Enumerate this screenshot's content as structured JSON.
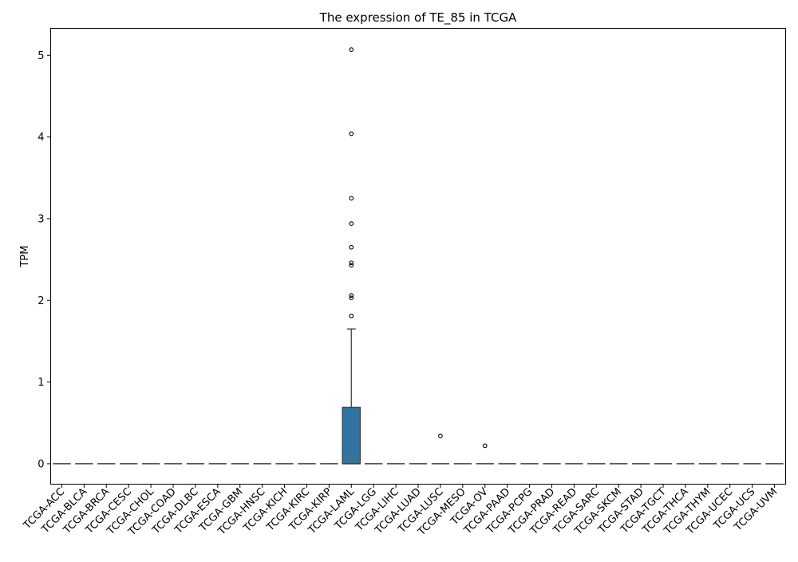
{
  "chart_data": {
    "type": "box",
    "title": "The expression of TE_85 in TCGA",
    "xlabel": "",
    "ylabel": "TPM",
    "ylim": [
      -0.25,
      5.33
    ],
    "yticks": [
      0,
      1,
      2,
      3,
      4,
      5
    ],
    "grid": false,
    "legend": "none",
    "box_color": "#3274a1",
    "categories": [
      "TCGA-ACC",
      "TCGA-BLCA",
      "TCGA-BRCA",
      "TCGA-CESC",
      "TCGA-CHOL",
      "TCGA-COAD",
      "TCGA-DLBC",
      "TCGA-ESCA",
      "TCGA-GBM",
      "TCGA-HNSC",
      "TCGA-KICH",
      "TCGA-KIRC",
      "TCGA-KIRP",
      "TCGA-LAML",
      "TCGA-LGG",
      "TCGA-LIHC",
      "TCGA-LUAD",
      "TCGA-LUSC",
      "TCGA-MESO",
      "TCGA-OV",
      "TCGA-PAAD",
      "TCGA-PCPG",
      "TCGA-PRAD",
      "TCGA-READ",
      "TCGA-SARC",
      "TCGA-SKCM",
      "TCGA-STAD",
      "TCGA-TGCT",
      "TCGA-THCA",
      "TCGA-THYM",
      "TCGA-UCEC",
      "TCGA-UCS",
      "TCGA-UVM"
    ],
    "boxes": [
      {
        "q1": 0,
        "median": 0,
        "q3": 0,
        "whisker_low": 0,
        "whisker_high": 0,
        "outliers": []
      },
      {
        "q1": 0,
        "median": 0,
        "q3": 0,
        "whisker_low": 0,
        "whisker_high": 0,
        "outliers": []
      },
      {
        "q1": 0,
        "median": 0,
        "q3": 0,
        "whisker_low": 0,
        "whisker_high": 0,
        "outliers": []
      },
      {
        "q1": 0,
        "median": 0,
        "q3": 0,
        "whisker_low": 0,
        "whisker_high": 0,
        "outliers": []
      },
      {
        "q1": 0,
        "median": 0,
        "q3": 0,
        "whisker_low": 0,
        "whisker_high": 0,
        "outliers": []
      },
      {
        "q1": 0,
        "median": 0,
        "q3": 0,
        "whisker_low": 0,
        "whisker_high": 0,
        "outliers": []
      },
      {
        "q1": 0,
        "median": 0,
        "q3": 0,
        "whisker_low": 0,
        "whisker_high": 0,
        "outliers": []
      },
      {
        "q1": 0,
        "median": 0,
        "q3": 0,
        "whisker_low": 0,
        "whisker_high": 0,
        "outliers": []
      },
      {
        "q1": 0,
        "median": 0,
        "q3": 0,
        "whisker_low": 0,
        "whisker_high": 0,
        "outliers": []
      },
      {
        "q1": 0,
        "median": 0,
        "q3": 0,
        "whisker_low": 0,
        "whisker_high": 0,
        "outliers": []
      },
      {
        "q1": 0,
        "median": 0,
        "q3": 0,
        "whisker_low": 0,
        "whisker_high": 0,
        "outliers": []
      },
      {
        "q1": 0,
        "median": 0,
        "q3": 0,
        "whisker_low": 0,
        "whisker_high": 0,
        "outliers": []
      },
      {
        "q1": 0,
        "median": 0,
        "q3": 0,
        "whisker_low": 0,
        "whisker_high": 0,
        "outliers": []
      },
      {
        "q1": 0,
        "median": 0,
        "q3": 0.69,
        "whisker_low": 0,
        "whisker_high": 1.65,
        "outliers": [
          5.07,
          4.04,
          3.25,
          2.94,
          2.65,
          2.46,
          2.43,
          2.06,
          2.03,
          1.81
        ]
      },
      {
        "q1": 0,
        "median": 0,
        "q3": 0,
        "whisker_low": 0,
        "whisker_high": 0,
        "outliers": []
      },
      {
        "q1": 0,
        "median": 0,
        "q3": 0,
        "whisker_low": 0,
        "whisker_high": 0,
        "outliers": []
      },
      {
        "q1": 0,
        "median": 0,
        "q3": 0,
        "whisker_low": 0,
        "whisker_high": 0,
        "outliers": []
      },
      {
        "q1": 0,
        "median": 0,
        "q3": 0,
        "whisker_low": 0,
        "whisker_high": 0,
        "outliers": [
          0.34
        ]
      },
      {
        "q1": 0,
        "median": 0,
        "q3": 0,
        "whisker_low": 0,
        "whisker_high": 0,
        "outliers": []
      },
      {
        "q1": 0,
        "median": 0,
        "q3": 0,
        "whisker_low": 0,
        "whisker_high": 0,
        "outliers": [
          0.22
        ]
      },
      {
        "q1": 0,
        "median": 0,
        "q3": 0,
        "whisker_low": 0,
        "whisker_high": 0,
        "outliers": []
      },
      {
        "q1": 0,
        "median": 0,
        "q3": 0,
        "whisker_low": 0,
        "whisker_high": 0,
        "outliers": []
      },
      {
        "q1": 0,
        "median": 0,
        "q3": 0,
        "whisker_low": 0,
        "whisker_high": 0,
        "outliers": []
      },
      {
        "q1": 0,
        "median": 0,
        "q3": 0,
        "whisker_low": 0,
        "whisker_high": 0,
        "outliers": []
      },
      {
        "q1": 0,
        "median": 0,
        "q3": 0,
        "whisker_low": 0,
        "whisker_high": 0,
        "outliers": []
      },
      {
        "q1": 0,
        "median": 0,
        "q3": 0,
        "whisker_low": 0,
        "whisker_high": 0,
        "outliers": []
      },
      {
        "q1": 0,
        "median": 0,
        "q3": 0,
        "whisker_low": 0,
        "whisker_high": 0,
        "outliers": []
      },
      {
        "q1": 0,
        "median": 0,
        "q3": 0,
        "whisker_low": 0,
        "whisker_high": 0,
        "outliers": []
      },
      {
        "q1": 0,
        "median": 0,
        "q3": 0,
        "whisker_low": 0,
        "whisker_high": 0,
        "outliers": []
      },
      {
        "q1": 0,
        "median": 0,
        "q3": 0,
        "whisker_low": 0,
        "whisker_high": 0,
        "outliers": []
      },
      {
        "q1": 0,
        "median": 0,
        "q3": 0,
        "whisker_low": 0,
        "whisker_high": 0,
        "outliers": []
      },
      {
        "q1": 0,
        "median": 0,
        "q3": 0,
        "whisker_low": 0,
        "whisker_high": 0,
        "outliers": []
      },
      {
        "q1": 0,
        "median": 0,
        "q3": 0,
        "whisker_low": 0,
        "whisker_high": 0,
        "outliers": []
      }
    ]
  }
}
